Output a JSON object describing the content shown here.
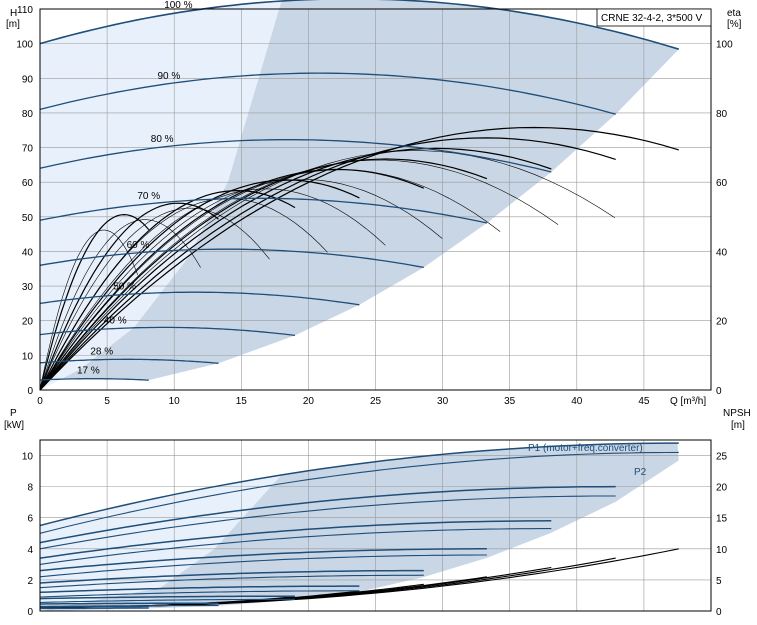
{
  "model_label": "CRNE 32-4-2, 3*500 V",
  "chart_data": [
    {
      "type": "line",
      "title": "",
      "x_axis": {
        "label": "Q [m³/h]",
        "range": [
          0,
          50
        ],
        "ticks": [
          0,
          5,
          10,
          15,
          20,
          25,
          30,
          35,
          40,
          45
        ]
      },
      "y_left": {
        "unit_line1": "H",
        "unit_line2": "[m]",
        "range": [
          0,
          110
        ],
        "ticks": [
          0,
          10,
          20,
          30,
          40,
          50,
          60,
          70,
          80,
          90,
          100,
          110
        ]
      },
      "y_right": {
        "unit_line1": "eta",
        "unit_line2": "[%]",
        "range": [
          0,
          110
        ],
        "ticks": [
          0,
          20,
          40,
          60,
          80,
          100
        ]
      },
      "grid": true,
      "head_curves": [
        {
          "speed": "100 %",
          "label": "100 %",
          "h0": 100,
          "a": 1.12,
          "b": 0.02424,
          "q_end": 47.6
        },
        {
          "speed": "90 %",
          "label": "90 %",
          "h0": 81,
          "a": 1.008,
          "b": 0.02424,
          "q_end": 42.9
        },
        {
          "speed": "80 %",
          "label": "80 %",
          "h0": 64,
          "a": 0.896,
          "b": 0.02424,
          "q_end": 38.1
        },
        {
          "speed": "70 %",
          "label": "70 %",
          "h0": 49,
          "a": 0.784,
          "b": 0.02424,
          "q_end": 33.3
        },
        {
          "speed": "60 %",
          "label": "60 %",
          "h0": 36,
          "a": 0.672,
          "b": 0.02424,
          "q_end": 28.6
        },
        {
          "speed": "50 %",
          "label": "50 %",
          "h0": 25,
          "a": 0.56,
          "b": 0.02424,
          "q_end": 23.8
        },
        {
          "speed": "40 %",
          "label": "40 %",
          "h0": 16,
          "a": 0.448,
          "b": 0.02424,
          "q_end": 19.0
        },
        {
          "speed": "28 %",
          "label": "28 %",
          "h0": 7.84,
          "a": 0.3136,
          "b": 0.02424,
          "q_end": 13.3
        },
        {
          "speed": "17 %",
          "label": "17 %",
          "h0": 2.89,
          "a": 0.1904,
          "b": 0.02424,
          "q_end": 8.1
        }
      ],
      "efficiency_curve_peak": 72,
      "efficiency_curve_bep_q": 35
    },
    {
      "type": "line",
      "x_axis": {
        "range": [
          0,
          50
        ]
      },
      "y_left": {
        "unit_line1": "P",
        "unit_line2": "[kW]",
        "range": [
          0,
          11
        ],
        "ticks": [
          0,
          2,
          4,
          6,
          8,
          10
        ]
      },
      "y_right": {
        "unit_line1": "NPSH",
        "unit_line2": "[m]",
        "range": [
          0,
          27.5
        ],
        "ticks": [
          0,
          5,
          10,
          15,
          20,
          25
        ]
      },
      "series_labels": {
        "p1": "P1 (motor+freq.converter)",
        "p2": "P2"
      },
      "power_curves": [
        {
          "speed": "100 %",
          "p1_start": 5.5,
          "p1_end": 10.8,
          "p2_start": 5.0,
          "p2_end": 10.2,
          "q_end": 47.6
        },
        {
          "speed": "90 %",
          "p1_start": 4.4,
          "p1_end": 8.0,
          "p2_start": 4.0,
          "p2_end": 7.4,
          "q_end": 42.9
        },
        {
          "speed": "80 %",
          "p1_start": 3.4,
          "p1_end": 5.8,
          "p2_start": 3.0,
          "p2_end": 5.3,
          "q_end": 38.1
        },
        {
          "speed": "70 %",
          "p1_start": 2.6,
          "p1_end": 4.0,
          "p2_start": 2.2,
          "p2_end": 3.6,
          "q_end": 33.3
        },
        {
          "speed": "60 %",
          "p1_start": 1.8,
          "p1_end": 2.6,
          "p2_start": 1.5,
          "p2_end": 2.3,
          "q_end": 28.6
        },
        {
          "speed": "50 %",
          "p1_start": 1.2,
          "p1_end": 1.6,
          "p2_start": 0.9,
          "p2_end": 1.3,
          "q_end": 23.8
        },
        {
          "speed": "40 %",
          "p1_start": 0.8,
          "p1_end": 0.95,
          "p2_start": 0.55,
          "p2_end": 0.75,
          "q_end": 19.0
        },
        {
          "speed": "28 %",
          "p1_start": 0.45,
          "p1_end": 0.5,
          "p2_start": 0.3,
          "p2_end": 0.35,
          "q_end": 13.3
        },
        {
          "speed": "17 %",
          "p1_start": 0.25,
          "p1_end": 0.28,
          "p2_start": 0.15,
          "p2_end": 0.18,
          "q_end": 8.1
        }
      ],
      "npsh_end_values": [
        10,
        8.5,
        7,
        5.5,
        4.3,
        3.2,
        2.3,
        1.4,
        0.8
      ]
    }
  ],
  "colors": {
    "curve": "#1f4e79",
    "shade_main": "#c9d6e5",
    "shade_light": "#e8f1fb",
    "black": "#000000",
    "grid": "#9a9a9a"
  }
}
